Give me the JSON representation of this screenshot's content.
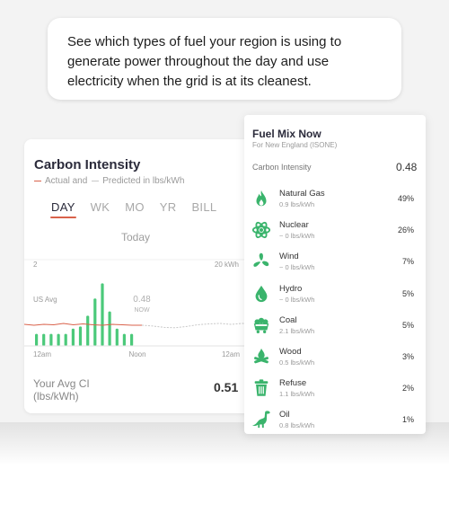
{
  "bubble": {
    "text": "See which types of fuel your region is using to generate power throughout the day and use electricity when the grid is at its cleanest."
  },
  "carbon_card": {
    "title": "Carbon Intensity",
    "legend": {
      "actual": "Actual and",
      "predicted": "Predicted in lbs/kWh"
    },
    "tabs": [
      "DAY",
      "WK",
      "MO",
      "YR",
      "BILL"
    ],
    "active_tab": "DAY",
    "period_label": "Today",
    "y_left_label": "2",
    "y_right_label": "20 kWh",
    "us_avg_label": "US Avg",
    "now_value": "0.48",
    "now_label": "NOW",
    "x_labels": [
      "12am",
      "Noon",
      "12am"
    ],
    "avg_label_line1": "Your Avg CI",
    "avg_label_line2": "(lbs/kWh)",
    "avg_value": "0.51"
  },
  "chart_data": {
    "type": "bar",
    "bar_color": "#4bc97a",
    "actual_color": "#d9624b",
    "predicted_color": "#c8c8c8",
    "usage_kwh": [
      2.8,
      2.8,
      2.8,
      2.8,
      2.8,
      4.0,
      4.5,
      7.0,
      11.0,
      14.5,
      8.0,
      4.0,
      2.8,
      2.8
    ],
    "usage_ylim": [
      0,
      20
    ],
    "carbon_intensity_ylim": [
      0,
      2
    ],
    "carbon_intensity_actual": [
      0.5,
      0.48,
      0.5,
      0.49,
      0.52,
      0.49,
      0.51,
      0.49,
      0.48,
      0.5,
      0.49,
      0.48,
      0.48
    ],
    "carbon_intensity_predicted": [
      0.48,
      0.46,
      0.43,
      0.42,
      0.45,
      0.49,
      0.51,
      0.52,
      0.5,
      0.52,
      0.51
    ]
  },
  "fuel_mix": {
    "title": "Fuel Mix Now",
    "subtitle": "For New England (ISONE)",
    "ci_label": "Carbon Intensity",
    "ci_value": "0.48",
    "icon_color": "#3ab46c",
    "items": [
      {
        "name": "Natural Gas",
        "ci": "0.9 lbs/kWh",
        "pct": "49%",
        "icon": "flame-icon"
      },
      {
        "name": "Nuclear",
        "ci": "~ 0 lbs/kWh",
        "pct": "26%",
        "icon": "atom-icon"
      },
      {
        "name": "Wind",
        "ci": "~ 0 lbs/kWh",
        "pct": "7%",
        "icon": "wind-fan-icon"
      },
      {
        "name": "Hydro",
        "ci": "~ 0 lbs/kWh",
        "pct": "5%",
        "icon": "water-drop-icon"
      },
      {
        "name": "Coal",
        "ci": "2.1 lbs/kWh",
        "pct": "5%",
        "icon": "coal-cart-icon"
      },
      {
        "name": "Wood",
        "ci": "0.5 lbs/kWh",
        "pct": "3%",
        "icon": "campfire-icon"
      },
      {
        "name": "Refuse",
        "ci": "1.1 lbs/kWh",
        "pct": "2%",
        "icon": "trash-can-icon"
      },
      {
        "name": "Oil",
        "ci": "0.8 lbs/kWh",
        "pct": "1%",
        "icon": "dinosaur-icon"
      }
    ]
  }
}
